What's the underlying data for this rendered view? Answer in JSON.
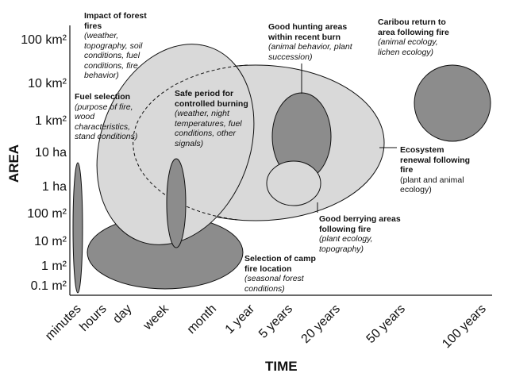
{
  "axes": {
    "y_title": "AREA",
    "x_title": "TIME",
    "y_ticks": [
      "100 km²",
      "10 km²",
      "1 km²",
      "10 ha",
      "1 ha",
      "100 m²",
      "10 m²",
      "1 m²",
      "0.1 m²"
    ],
    "x_ticks": [
      "minutes",
      "hours",
      "day",
      "week",
      "month",
      "1 year",
      "5 years",
      "20 years",
      "50 years",
      "100 years"
    ]
  },
  "annotations": {
    "forest_fires": {
      "title": "Impact of forest fires",
      "detail": "(weather, topography, soil conditions, fuel conditions, fire behavior)"
    },
    "fuel_selection": {
      "title": "Fuel selection",
      "detail": "(purpose of fire, wood characteristics, stand conditions)"
    },
    "safe_period": {
      "title": "Safe period for controlled burning",
      "detail": "(weather, night temperatures, fuel conditions, other signals)"
    },
    "hunting": {
      "title": "Good hunting areas within recent burn",
      "detail": "(animal behavior, plant succession)"
    },
    "caribou": {
      "title": "Caribou return to area following fire",
      "detail": "(animal ecology, lichen ecology)"
    },
    "ecosystem": {
      "title": "Ecosystem renewal following fire",
      "detail": "(plant and animal ecology)"
    },
    "berrying": {
      "title": "Good berrying areas following fire",
      "detail": "(plant ecology, topography)"
    },
    "camp_fire": {
      "title": "Selection of camp fire location",
      "detail": "(seasonal forest conditions)"
    }
  },
  "colors": {
    "light_fill": "#d9d9d9",
    "dark_fill": "#8c8c8c",
    "stroke": "#111111"
  }
}
